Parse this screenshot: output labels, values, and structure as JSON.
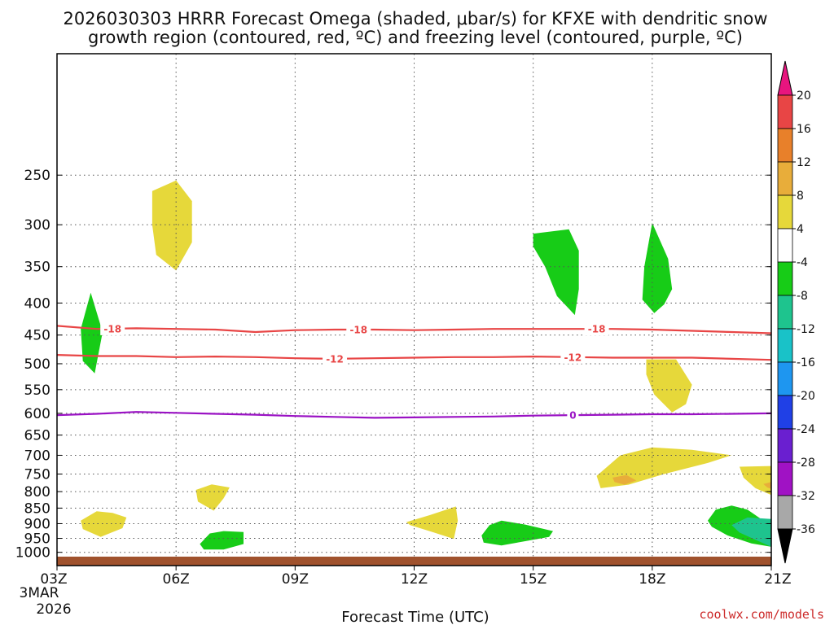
{
  "chart_data": {
    "type": "contour-cross-section",
    "title_line1": "2026030303 HRRR Forecast Omega (shaded, μbar/s) for KFXE with dendritic snow",
    "title_line2": "growth region (contoured, red, ºC) and freezing level (contoured, purple, ºC)",
    "xlabel": "Forecast Time (UTC)",
    "x_ticks": [
      {
        "hour": 0,
        "label": "03Z"
      },
      {
        "hour": 3,
        "label": "06Z"
      },
      {
        "hour": 6,
        "label": "09Z"
      },
      {
        "hour": 9,
        "label": "12Z"
      },
      {
        "hour": 12,
        "label": "15Z"
      },
      {
        "hour": 15,
        "label": "18Z"
      },
      {
        "hour": 18,
        "label": "21Z"
      }
    ],
    "x_date_lines": [
      "3MAR",
      "2026"
    ],
    "x_range_hours": [
      0,
      18
    ],
    "y_levels_hpa": [
      250,
      300,
      350,
      400,
      450,
      500,
      550,
      600,
      650,
      700,
      750,
      800,
      850,
      900,
      950,
      1000
    ],
    "colorbar": {
      "labels": [
        "20",
        "16",
        "12",
        "8",
        "4",
        "-4",
        "-8",
        "-12",
        "-16",
        "-20",
        "-24",
        "-28",
        "-32",
        "-36"
      ],
      "colors": {
        "above_20": "#e8157f",
        "16_20": "#e84545",
        "12_16": "#e8802a",
        "8_12": "#e8ad3a",
        "4_8": "#e6d83a",
        "neg4_4": "#ffffff",
        "neg8_neg4": "#17cc17",
        "neg12_neg8": "#1ec48e",
        "neg16_neg12": "#19c2c8",
        "neg20_neg16": "#1e96f0",
        "neg24_neg20": "#2040e6",
        "neg28_neg24": "#6a1fd0",
        "neg32_neg28": "#a012c4",
        "neg36_neg32": "#a8a8a8",
        "below_neg36": "#000000"
      }
    },
    "contour_colors": {
      "dgz": "#e84545",
      "freezing": "#9a12c4",
      "ground": "#a0522d"
    },
    "contours": [
      {
        "kind": "dgz",
        "label": "-18",
        "points": [
          [
            0,
            435
          ],
          [
            1,
            440
          ],
          [
            2,
            439
          ],
          [
            3,
            440
          ],
          [
            4,
            441
          ],
          [
            5,
            445
          ],
          [
            6,
            442
          ],
          [
            7,
            441
          ],
          [
            8,
            441
          ],
          [
            9,
            442
          ],
          [
            10,
            441
          ],
          [
            11,
            440
          ],
          [
            12,
            440
          ],
          [
            13,
            440
          ],
          [
            14,
            440
          ],
          [
            15,
            441
          ],
          [
            16,
            443
          ],
          [
            17,
            445
          ],
          [
            18,
            447
          ]
        ],
        "label_hours": [
          1.4,
          7.6,
          13.6
        ]
      },
      {
        "kind": "dgz",
        "label": "-12",
        "points": [
          [
            0,
            484
          ],
          [
            1,
            486
          ],
          [
            2,
            486
          ],
          [
            3,
            488
          ],
          [
            4,
            487
          ],
          [
            5,
            488
          ],
          [
            6,
            490
          ],
          [
            7,
            491
          ],
          [
            8,
            490
          ],
          [
            9,
            489
          ],
          [
            10,
            488
          ],
          [
            11,
            488
          ],
          [
            12,
            487
          ],
          [
            13,
            488
          ],
          [
            14,
            489
          ],
          [
            15,
            489
          ],
          [
            16,
            489
          ],
          [
            17,
            491
          ],
          [
            18,
            493
          ]
        ],
        "label_hours": [
          7.0,
          13.0
        ]
      },
      {
        "kind": "freezing",
        "label": "0",
        "points": [
          [
            0,
            604
          ],
          [
            1,
            601
          ],
          [
            2,
            597
          ],
          [
            3,
            599
          ],
          [
            4,
            601
          ],
          [
            5,
            603
          ],
          [
            6,
            606
          ],
          [
            7,
            608
          ],
          [
            8,
            610
          ],
          [
            9,
            609
          ],
          [
            10,
            608
          ],
          [
            11,
            607
          ],
          [
            12,
            605
          ],
          [
            13,
            604
          ],
          [
            14,
            603
          ],
          [
            15,
            602
          ],
          [
            16,
            602
          ],
          [
            17,
            601
          ],
          [
            18,
            600
          ]
        ],
        "label_hours": [
          13.0
        ]
      }
    ],
    "shaded_regions": [
      {
        "class": "4_8",
        "points": [
          [
            2.4,
            265
          ],
          [
            3.0,
            255
          ],
          [
            3.4,
            275
          ],
          [
            3.4,
            320
          ],
          [
            3.0,
            355
          ],
          [
            2.5,
            335
          ],
          [
            2.4,
            300
          ]
        ]
      },
      {
        "class": "neg8_neg4",
        "points": [
          [
            0.6,
            440
          ],
          [
            0.85,
            385
          ],
          [
            1.15,
            445
          ],
          [
            0.95,
            518
          ],
          [
            0.65,
            495
          ]
        ]
      },
      {
        "class": "neg8_neg4",
        "points": [
          [
            12.0,
            310
          ],
          [
            12.9,
            305
          ],
          [
            13.15,
            330
          ],
          [
            13.15,
            380
          ],
          [
            13.05,
            418
          ],
          [
            12.6,
            390
          ],
          [
            12.3,
            350
          ],
          [
            12.0,
            325
          ]
        ]
      },
      {
        "class": "neg8_neg4",
        "points": [
          [
            15.0,
            298
          ],
          [
            15.4,
            340
          ],
          [
            15.5,
            380
          ],
          [
            15.3,
            402
          ],
          [
            15.05,
            415
          ],
          [
            14.75,
            395
          ],
          [
            14.8,
            350
          ]
        ]
      },
      {
        "class": "4_8",
        "points": [
          [
            14.85,
            492
          ],
          [
            15.6,
            492
          ],
          [
            16.0,
            540
          ],
          [
            15.85,
            580
          ],
          [
            15.5,
            598
          ],
          [
            15.05,
            560
          ],
          [
            14.85,
            520
          ]
        ]
      },
      {
        "class": "4_8",
        "points": [
          [
            13.6,
            755
          ],
          [
            14.2,
            700
          ],
          [
            15.0,
            680
          ],
          [
            16.0,
            686
          ],
          [
            17.0,
            700
          ],
          [
            16.4,
            720
          ],
          [
            15.3,
            750
          ],
          [
            14.4,
            780
          ],
          [
            13.7,
            790
          ]
        ]
      },
      {
        "class": "8_12",
        "points": [
          [
            14.0,
            760
          ],
          [
            14.35,
            753
          ],
          [
            14.6,
            768
          ],
          [
            14.3,
            780
          ],
          [
            14.05,
            772
          ]
        ]
      },
      {
        "class": "4_8",
        "points": [
          [
            17.2,
            730
          ],
          [
            18.0,
            728
          ],
          [
            18.0,
            810
          ],
          [
            17.6,
            790
          ],
          [
            17.3,
            760
          ]
        ]
      },
      {
        "class": "8_12",
        "points": [
          [
            17.8,
            778
          ],
          [
            18.0,
            772
          ],
          [
            18.0,
            792
          ],
          [
            17.9,
            788
          ]
        ]
      },
      {
        "class": "4_8",
        "points": [
          [
            3.5,
            795
          ],
          [
            3.9,
            779
          ],
          [
            4.35,
            788
          ],
          [
            4.2,
            820
          ],
          [
            3.95,
            858
          ],
          [
            3.55,
            830
          ]
        ]
      },
      {
        "class": "4_8",
        "points": [
          [
            0.6,
            890
          ],
          [
            1.0,
            860
          ],
          [
            1.4,
            865
          ],
          [
            1.75,
            880
          ],
          [
            1.65,
            915
          ],
          [
            1.1,
            945
          ],
          [
            0.65,
            918
          ]
        ]
      },
      {
        "class": "4_8",
        "points": [
          [
            8.8,
            895
          ],
          [
            9.4,
            872
          ],
          [
            10.05,
            845
          ],
          [
            10.1,
            890
          ],
          [
            10.0,
            952
          ],
          [
            9.5,
            930
          ],
          [
            8.9,
            905
          ]
        ]
      },
      {
        "class": "neg8_neg4",
        "points": [
          [
            3.6,
            970
          ],
          [
            3.85,
            933
          ],
          [
            4.2,
            925
          ],
          [
            4.7,
            928
          ],
          [
            4.7,
            970
          ],
          [
            4.2,
            990
          ],
          [
            3.7,
            990
          ]
        ]
      },
      {
        "class": "neg8_neg4",
        "points": [
          [
            10.7,
            940
          ],
          [
            10.9,
            905
          ],
          [
            11.2,
            890
          ],
          [
            11.8,
            903
          ],
          [
            12.5,
            925
          ],
          [
            12.4,
            945
          ],
          [
            11.8,
            960
          ],
          [
            11.2,
            975
          ],
          [
            10.75,
            965
          ]
        ]
      },
      {
        "class": "neg8_neg4",
        "points": [
          [
            16.4,
            890
          ],
          [
            16.6,
            855
          ],
          [
            17.0,
            842
          ],
          [
            17.4,
            855
          ],
          [
            17.8,
            890
          ],
          [
            18.0,
            900
          ],
          [
            18.0,
            980
          ],
          [
            17.5,
            968
          ],
          [
            16.9,
            940
          ],
          [
            16.5,
            910
          ]
        ]
      },
      {
        "class": "neg12_neg8",
        "points": [
          [
            17.0,
            905
          ],
          [
            17.4,
            880
          ],
          [
            18.0,
            885
          ],
          [
            18.0,
            980
          ],
          [
            17.6,
            955
          ],
          [
            17.2,
            930
          ]
        ]
      }
    ],
    "credit": "coolwx.com/models"
  }
}
